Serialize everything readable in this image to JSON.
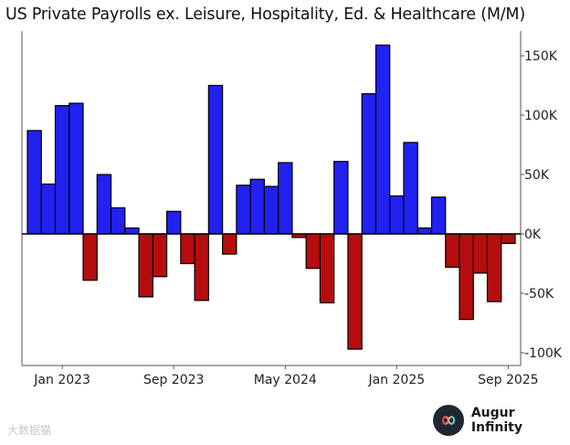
{
  "chart_data": {
    "type": "bar",
    "title": "US Private Payrolls ex. Leisure, Hospitality, Ed. & Healthcare (M/M)",
    "xlabel": "",
    "ylabel": "",
    "ylim": [
      -110,
      165
    ],
    "y_ticks": [
      {
        "value": 150,
        "label": "150K"
      },
      {
        "value": 100,
        "label": "100K"
      },
      {
        "value": 50,
        "label": "50K"
      },
      {
        "value": 0,
        "label": "0K"
      },
      {
        "value": -50,
        "label": "-50K"
      },
      {
        "value": -100,
        "label": "-100K"
      }
    ],
    "x_ticks": [
      {
        "index": 2,
        "label": "Jan 2023"
      },
      {
        "index": 10,
        "label": "Sep 2023"
      },
      {
        "index": 18,
        "label": "May 2024"
      },
      {
        "index": 26,
        "label": "Jan 2025"
      },
      {
        "index": 34,
        "label": "Sep 2025"
      }
    ],
    "grid": false,
    "positive_color": "#2121f0",
    "negative_color": "#b50d0d",
    "values": [
      87,
      42,
      108,
      110,
      -39,
      50,
      22,
      5,
      -53,
      -36,
      19,
      -25,
      -56,
      125,
      -17,
      41,
      46,
      40,
      60,
      -3,
      -29,
      -58,
      61,
      -97,
      118,
      159,
      32,
      77,
      5,
      31,
      -28,
      -72,
      -33,
      -57,
      -8
    ]
  },
  "brand": {
    "name": "Augur Infinity",
    "logo_icon": "infinity-icon"
  },
  "watermark": "大数据猫"
}
